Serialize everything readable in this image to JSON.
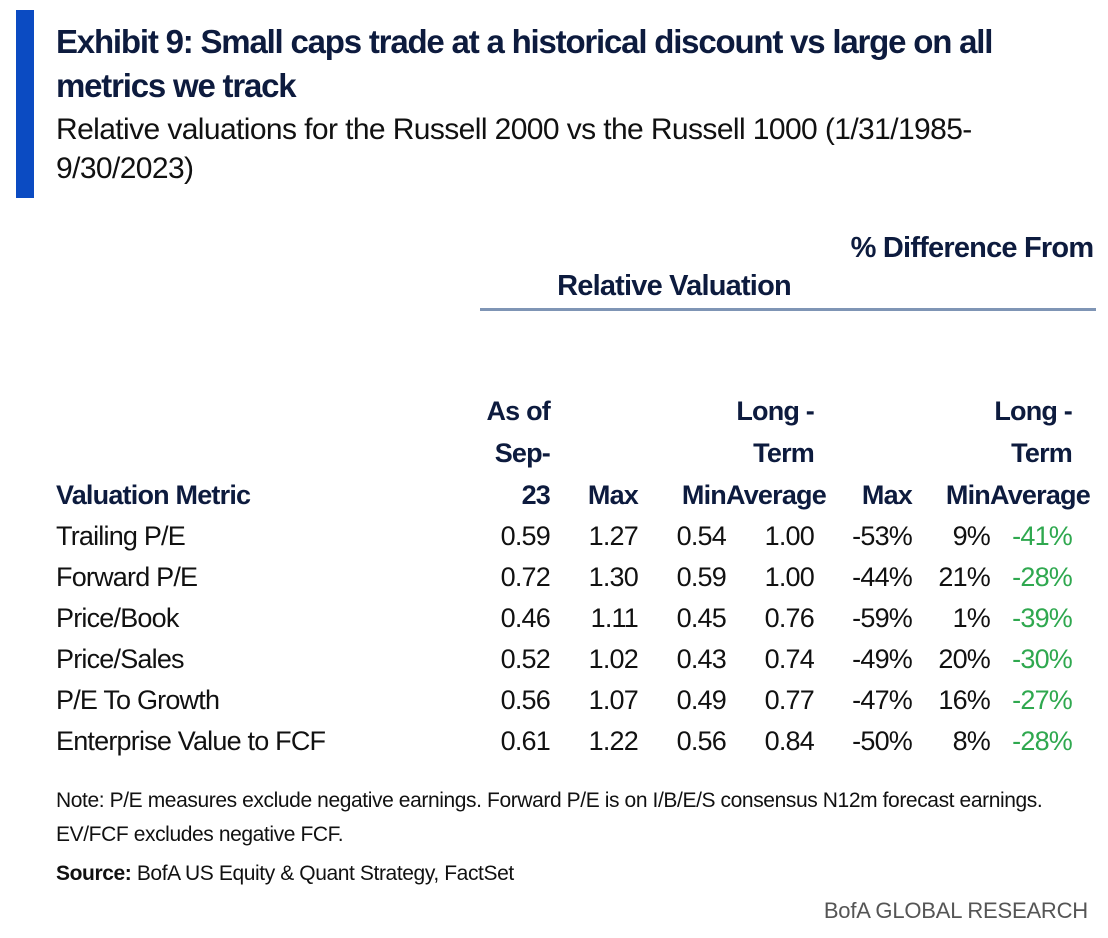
{
  "colors": {
    "accent_bar": "#0b4bc2",
    "title_text": "#0d1b3e",
    "negative_highlight": "#2fa84f",
    "rule": "#7f95b5"
  },
  "header": {
    "title": "Exhibit 9: Small caps trade at a historical discount vs large on all metrics we track",
    "subtitle": "Relative valuations for the Russell 2000 vs the Russell 1000 (1/31/1985-9/30/2023)"
  },
  "table": {
    "group_headers": {
      "relative_valuation": "Relative Valuation",
      "pct_difference": "% Difference From"
    },
    "columns": [
      "Valuation Metric",
      "As of Sep-23",
      "Max",
      "Min",
      "Long - Term Average",
      "Max",
      "Min",
      "Long - Term Average"
    ],
    "rows": [
      [
        "Trailing P/E",
        "0.59",
        "1.27",
        "0.54",
        "1.00",
        "-53%",
        "9%",
        "-41%"
      ],
      [
        "Forward P/E",
        "0.72",
        "1.30",
        "0.59",
        "1.00",
        "-44%",
        "21%",
        "-28%"
      ],
      [
        "Price/Book",
        "0.46",
        "1.11",
        "0.45",
        "0.76",
        "-59%",
        "1%",
        "-39%"
      ],
      [
        "Price/Sales",
        "0.52",
        "1.02",
        "0.43",
        "0.74",
        "-49%",
        "20%",
        "-30%"
      ],
      [
        "P/E To Growth",
        "0.56",
        "1.07",
        "0.49",
        "0.77",
        "-47%",
        "16%",
        "-27%"
      ],
      [
        "Enterprise Value to FCF",
        "0.61",
        "1.22",
        "0.56",
        "0.84",
        "-50%",
        "8%",
        "-28%"
      ]
    ]
  },
  "footer": {
    "note": "Note: P/E measures exclude negative earnings. Forward P/E is on I/B/E/S consensus N12m forecast earnings. EV/FCF excludes negative FCF.",
    "source_label": "Source:",
    "source_text": " BofA US Equity & Quant Strategy, FactSet",
    "brand": "BofA GLOBAL RESEARCH"
  }
}
